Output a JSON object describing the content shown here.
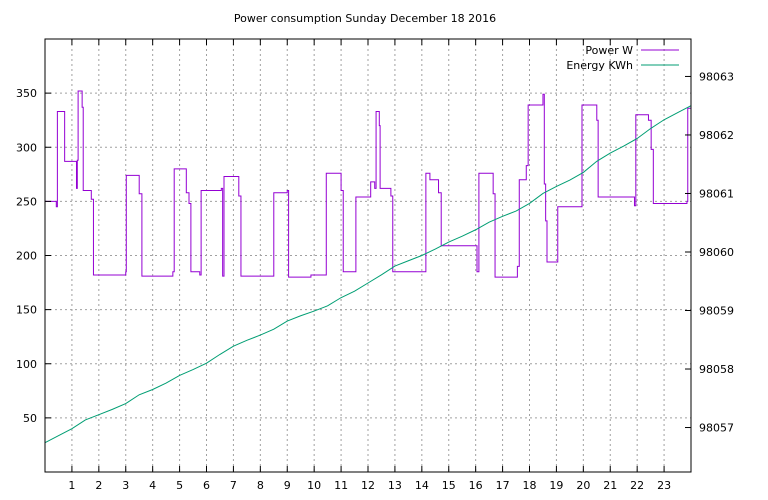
{
  "chart_data": {
    "type": "line",
    "title": "Power consumption Sunday December 18 2016",
    "xlabel": "",
    "ylabel": "",
    "xlim": [
      0,
      24
    ],
    "ylim": [
      0,
      400
    ],
    "y2lim": [
      98056.24,
      98063.64
    ],
    "grid": true,
    "legend_position": "top-right",
    "x_ticks": [
      1,
      2,
      3,
      4,
      5,
      6,
      7,
      8,
      9,
      10,
      11,
      12,
      13,
      14,
      15,
      16,
      17,
      18,
      19,
      20,
      21,
      22,
      23
    ],
    "y_ticks": [
      50,
      100,
      150,
      200,
      250,
      300,
      350
    ],
    "y2_ticks": [
      98057,
      98058,
      98059,
      98060,
      98061,
      98062,
      98063
    ],
    "series": [
      {
        "name": "Power W",
        "axis": "y1",
        "color": "#9400d3",
        "points": [
          [
            0.0,
            250
          ],
          [
            0.42,
            250
          ],
          [
            0.42,
            245
          ],
          [
            0.46,
            245
          ],
          [
            0.46,
            333
          ],
          [
            0.73,
            333
          ],
          [
            0.73,
            287
          ],
          [
            1.17,
            287
          ],
          [
            1.17,
            262
          ],
          [
            1.2,
            262
          ],
          [
            1.2,
            288
          ],
          [
            1.23,
            288
          ],
          [
            1.23,
            352
          ],
          [
            1.38,
            352
          ],
          [
            1.38,
            337
          ],
          [
            1.42,
            337
          ],
          [
            1.42,
            260
          ],
          [
            1.72,
            260
          ],
          [
            1.72,
            252
          ],
          [
            1.8,
            252
          ],
          [
            1.8,
            182
          ],
          [
            3.0,
            182
          ],
          [
            3.0,
            185
          ],
          [
            3.02,
            185
          ],
          [
            3.02,
            274
          ],
          [
            3.5,
            274
          ],
          [
            3.5,
            257
          ],
          [
            3.6,
            257
          ],
          [
            3.6,
            181
          ],
          [
            4.75,
            181
          ],
          [
            4.75,
            185
          ],
          [
            4.8,
            185
          ],
          [
            4.8,
            280
          ],
          [
            5.25,
            280
          ],
          [
            5.25,
            258
          ],
          [
            5.35,
            258
          ],
          [
            5.35,
            248
          ],
          [
            5.42,
            248
          ],
          [
            5.42,
            185
          ],
          [
            5.75,
            185
          ],
          [
            5.75,
            182
          ],
          [
            5.8,
            182
          ],
          [
            5.8,
            260
          ],
          [
            6.55,
            260
          ],
          [
            6.55,
            262
          ],
          [
            6.6,
            262
          ],
          [
            6.6,
            181
          ],
          [
            6.65,
            181
          ],
          [
            6.65,
            273
          ],
          [
            7.2,
            273
          ],
          [
            7.2,
            255
          ],
          [
            7.28,
            255
          ],
          [
            7.28,
            181
          ],
          [
            8.5,
            181
          ],
          [
            8.5,
            258
          ],
          [
            9.0,
            258
          ],
          [
            9.0,
            260
          ],
          [
            9.05,
            260
          ],
          [
            9.05,
            180
          ],
          [
            9.88,
            180
          ],
          [
            9.88,
            182
          ],
          [
            10.45,
            182
          ],
          [
            10.45,
            276
          ],
          [
            11.0,
            276
          ],
          [
            11.0,
            260
          ],
          [
            11.08,
            260
          ],
          [
            11.08,
            185
          ],
          [
            11.55,
            185
          ],
          [
            11.55,
            254
          ],
          [
            12.1,
            254
          ],
          [
            12.1,
            268
          ],
          [
            12.25,
            268
          ],
          [
            12.25,
            262
          ],
          [
            12.3,
            262
          ],
          [
            12.3,
            333
          ],
          [
            12.42,
            333
          ],
          [
            12.42,
            320
          ],
          [
            12.45,
            320
          ],
          [
            12.45,
            262
          ],
          [
            12.85,
            262
          ],
          [
            12.85,
            255
          ],
          [
            12.92,
            255
          ],
          [
            12.92,
            185
          ],
          [
            14.15,
            185
          ],
          [
            14.15,
            276
          ],
          [
            14.3,
            276
          ],
          [
            14.3,
            270
          ],
          [
            14.62,
            270
          ],
          [
            14.62,
            258
          ],
          [
            14.72,
            258
          ],
          [
            14.72,
            209
          ],
          [
            16.05,
            209
          ],
          [
            16.05,
            185
          ],
          [
            16.12,
            185
          ],
          [
            16.12,
            276
          ],
          [
            16.65,
            276
          ],
          [
            16.65,
            257
          ],
          [
            16.72,
            257
          ],
          [
            16.72,
            180
          ],
          [
            17.55,
            180
          ],
          [
            17.55,
            190
          ],
          [
            17.62,
            190
          ],
          [
            17.62,
            270
          ],
          [
            17.88,
            270
          ],
          [
            17.88,
            283
          ],
          [
            17.95,
            283
          ],
          [
            17.95,
            339
          ],
          [
            18.5,
            339
          ],
          [
            18.5,
            349
          ],
          [
            18.55,
            349
          ],
          [
            18.55,
            266
          ],
          [
            18.6,
            266
          ],
          [
            18.6,
            232
          ],
          [
            18.65,
            232
          ],
          [
            18.65,
            194
          ],
          [
            19.05,
            194
          ],
          [
            19.05,
            245
          ],
          [
            19.95,
            245
          ],
          [
            19.95,
            339
          ],
          [
            20.5,
            339
          ],
          [
            20.5,
            325
          ],
          [
            20.55,
            325
          ],
          [
            20.55,
            254
          ],
          [
            21.9,
            254
          ],
          [
            21.9,
            246
          ],
          [
            21.95,
            246
          ],
          [
            21.95,
            330
          ],
          [
            22.42,
            330
          ],
          [
            22.42,
            325
          ],
          [
            22.52,
            325
          ],
          [
            22.52,
            298
          ],
          [
            22.6,
            298
          ],
          [
            22.6,
            248
          ],
          [
            23.85,
            248
          ],
          [
            23.85,
            250
          ],
          [
            23.88,
            250
          ],
          [
            23.88,
            336
          ],
          [
            24.0,
            336
          ]
        ]
      },
      {
        "name": "Energy KWh",
        "axis": "y2",
        "color": "#009e73",
        "points": [
          [
            0.0,
            98056.74
          ],
          [
            0.5,
            98056.86
          ],
          [
            1.0,
            98056.98
          ],
          [
            1.5,
            98057.13
          ],
          [
            2.0,
            98057.22
          ],
          [
            2.5,
            98057.31
          ],
          [
            3.0,
            98057.41
          ],
          [
            3.5,
            98057.56
          ],
          [
            4.0,
            98057.65
          ],
          [
            4.5,
            98057.76
          ],
          [
            5.0,
            98057.89
          ],
          [
            5.5,
            98057.99
          ],
          [
            6.0,
            98058.1
          ],
          [
            6.5,
            98058.25
          ],
          [
            7.0,
            98058.39
          ],
          [
            7.5,
            98058.49
          ],
          [
            8.0,
            98058.58
          ],
          [
            8.5,
            98058.68
          ],
          [
            9.0,
            98058.82
          ],
          [
            9.5,
            98058.91
          ],
          [
            10.0,
            98058.99
          ],
          [
            10.5,
            98059.08
          ],
          [
            11.0,
            98059.22
          ],
          [
            11.5,
            98059.33
          ],
          [
            12.0,
            98059.47
          ],
          [
            12.5,
            98059.61
          ],
          [
            13.0,
            98059.76
          ],
          [
            13.5,
            98059.85
          ],
          [
            14.0,
            98059.94
          ],
          [
            14.5,
            98060.05
          ],
          [
            15.0,
            98060.17
          ],
          [
            15.5,
            98060.27
          ],
          [
            16.0,
            98060.38
          ],
          [
            16.5,
            98060.51
          ],
          [
            17.0,
            98060.61
          ],
          [
            17.5,
            98060.7
          ],
          [
            18.0,
            98060.83
          ],
          [
            18.5,
            98061.0
          ],
          [
            19.0,
            98061.12
          ],
          [
            19.5,
            98061.23
          ],
          [
            20.0,
            98061.36
          ],
          [
            20.5,
            98061.55
          ],
          [
            21.0,
            98061.69
          ],
          [
            21.5,
            98061.81
          ],
          [
            22.0,
            98061.94
          ],
          [
            22.5,
            98062.11
          ],
          [
            23.0,
            98062.26
          ],
          [
            23.5,
            98062.38
          ],
          [
            24.0,
            98062.5
          ]
        ]
      }
    ]
  }
}
